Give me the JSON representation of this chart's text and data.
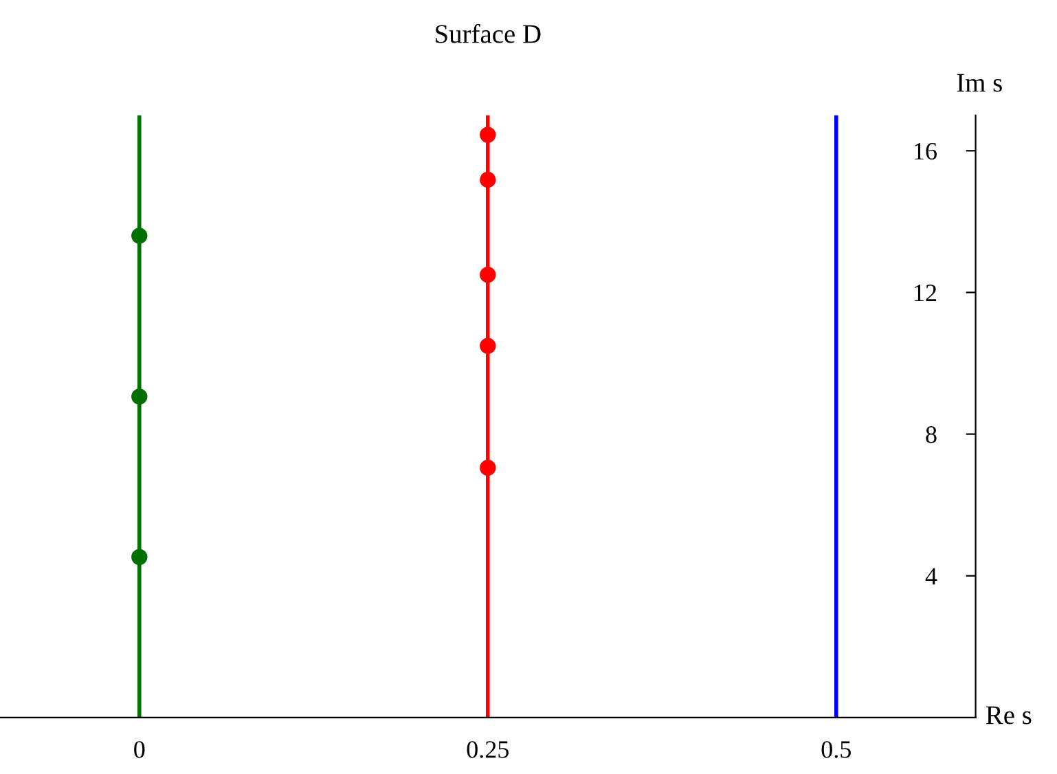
{
  "chart_data": {
    "type": "scatter",
    "title": "Surface D",
    "xlabel": "Re s",
    "ylabel": "Im s",
    "xlim": [
      -0.1,
      0.6
    ],
    "ylim": [
      0,
      17
    ],
    "xticks": [
      0,
      0.25,
      0.5
    ],
    "yticks": [
      4,
      8,
      12,
      16
    ],
    "grid": false,
    "legend": false,
    "marker": "circle",
    "series": [
      {
        "type": "line",
        "marker": "none",
        "line_style": "solid",
        "color": "#007000",
        "x": [
          0,
          0
        ],
        "values": [
          0,
          17
        ]
      },
      {
        "type": "line",
        "marker": "none",
        "line_style": "solid",
        "color": "#ff0000",
        "x": [
          0.25,
          0.25
        ],
        "values": [
          0,
          17
        ]
      },
      {
        "type": "line",
        "marker": "none",
        "line_style": "solid",
        "color": "#0000ff",
        "x": [
          0.5,
          0.5
        ],
        "values": [
          0,
          17
        ]
      },
      {
        "color": "#007000",
        "x": [
          0,
          0,
          0
        ],
        "values": [
          13.6,
          9.06,
          4.53
        ]
      },
      {
        "color": "#ff0000",
        "x": [
          0.25,
          0.25,
          0.25,
          0.25,
          0.25
        ],
        "values": [
          16.45,
          15.18,
          12.5,
          10.49,
          7.05
        ]
      }
    ]
  }
}
